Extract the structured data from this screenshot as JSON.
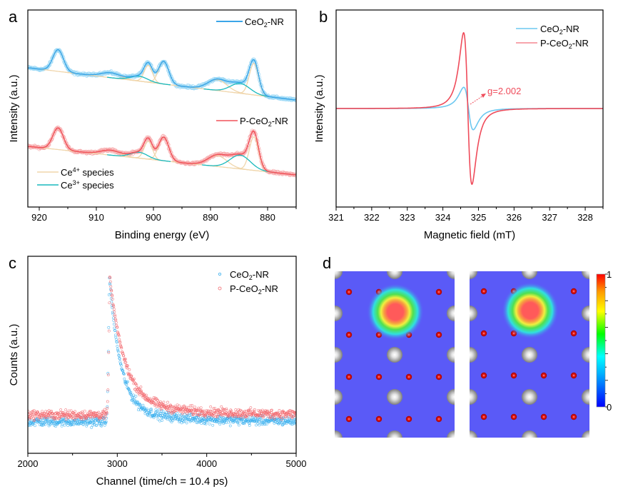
{
  "chart_data": [
    {
      "panel": "a",
      "type": "line",
      "xlabel": "Binding energy (eV)",
      "ylabel": "Intensity (a.u.)",
      "xlim": [
        922,
        875
      ],
      "ylim": [
        0,
        100
      ],
      "xticks": [
        920,
        910,
        900,
        890,
        880
      ],
      "grid": false,
      "legend": [
        {
          "pre": "CeO",
          "sub": "2",
          "post": "-NR",
          "color": "#3aa6e8"
        },
        {
          "pre": "P-CeO",
          "sub": "2",
          "post": "-NR",
          "color": "#f0525a"
        },
        {
          "pre": "Ce",
          "sup": "4+",
          "post": " species",
          "color": "#f0d6ac"
        },
        {
          "pre": "Ce",
          "sup": "3+",
          "post": " species",
          "color": "#19b9bd"
        }
      ],
      "series": [
        {
          "name": "CeO2-NR",
          "baseline": [
            70.7,
            54.3
          ],
          "ce4_peaks": [
            [
              916.7,
              11,
              2.2
            ],
            [
              907.5,
              2.5,
              4
            ],
            [
              900.9,
              8.5,
              1.7
            ],
            [
              898.2,
              11.5,
              2.1
            ],
            [
              888.8,
              5.5,
              4
            ],
            [
              882.4,
              16,
              1.9
            ]
          ],
          "ce3_peaks": [
            [
              902.5,
              2.5,
              3.5
            ],
            [
              884.8,
              5,
              4
            ]
          ],
          "line_color": "#3aa6e8",
          "point_color": "#9ad8f6"
        },
        {
          "name": "P-CeO2-NR",
          "baseline": [
            30.8,
            16.3
          ],
          "ce4_peaks": [
            [
              916.7,
              11,
              2.2
            ],
            [
              907.5,
              2.5,
              4
            ],
            [
              900.9,
              9,
              1.7
            ],
            [
              898.2,
              12,
              2.1
            ],
            [
              888.8,
              5.5,
              4
            ],
            [
              882.4,
              17,
              1.9
            ]
          ],
          "ce3_peaks": [
            [
              902.5,
              3,
              3.5
            ],
            [
              884.8,
              7,
              4.2
            ]
          ],
          "line_color": "#f0525a",
          "point_color": "#f7a9ab"
        }
      ]
    },
    {
      "panel": "b",
      "type": "line",
      "xlabel": "Magnetic field (mT)",
      "ylabel": "Intensity (a.u.)",
      "xlim": [
        321,
        328.5
      ],
      "ylim": [
        -1.3,
        1.3
      ],
      "xticks": [
        321,
        322,
        323,
        324,
        325,
        326,
        327,
        328
      ],
      "grid": false,
      "annotation": "g=2.002",
      "legend": [
        {
          "pre": "CeO",
          "sub": "2",
          "post": "-NR",
          "color": "#6cc8f0"
        },
        {
          "pre": "P-CeO",
          "sub": "2",
          "post": "-NR",
          "color": "#ef4b5a"
        }
      ],
      "series": [
        {
          "name": "CeO2-NR",
          "center": 324.72,
          "width": 0.4,
          "amplitude": 0.28,
          "color": "#6cc8f0"
        },
        {
          "name": "P-CeO2-NR",
          "center": 324.7,
          "width": 0.35,
          "amplitude": 1.0,
          "color": "#ef4b5a"
        }
      ]
    },
    {
      "panel": "c",
      "type": "scatter",
      "xlabel": "Channel (time/ch = 10.4 ps)",
      "ylabel": "Counts (a.u.)",
      "xlim": [
        2000,
        5000
      ],
      "ylim": [
        0,
        100
      ],
      "xticks": [
        2000,
        3000,
        4000,
        5000
      ],
      "grid": false,
      "legend": [
        {
          "pre": "CeO",
          "sub": "2",
          "post": "-NR",
          "color": "#3bb0ee"
        },
        {
          "pre": "P-CeO",
          "sub": "2",
          "post": "-NR",
          "color": "#f2676d"
        }
      ],
      "series": [
        {
          "name": "CeO2-NR",
          "background": 16,
          "peak_channel": 2910,
          "peak": 90,
          "tau_fast": 125,
          "tau_slow": 700,
          "slow_fraction": 0.08,
          "color": "#3bb0ee"
        },
        {
          "name": "P-CeO2-NR",
          "background": 19.5,
          "peak_channel": 2915,
          "peak": 90,
          "tau_fast": 160,
          "tau_slow": 700,
          "slow_fraction": 0.1,
          "color": "#f2676d"
        }
      ]
    },
    {
      "panel": "d",
      "type": "heatmap",
      "colorbar": {
        "min": "0",
        "max": "1",
        "colors": [
          "#0000ff",
          "#00ffff",
          "#00ff00",
          "#ffff00",
          "#ff0000"
        ]
      },
      "background_color": "#5a5af7"
    }
  ],
  "panels": {
    "a": "a",
    "b": "b",
    "c": "c",
    "d": "d"
  }
}
